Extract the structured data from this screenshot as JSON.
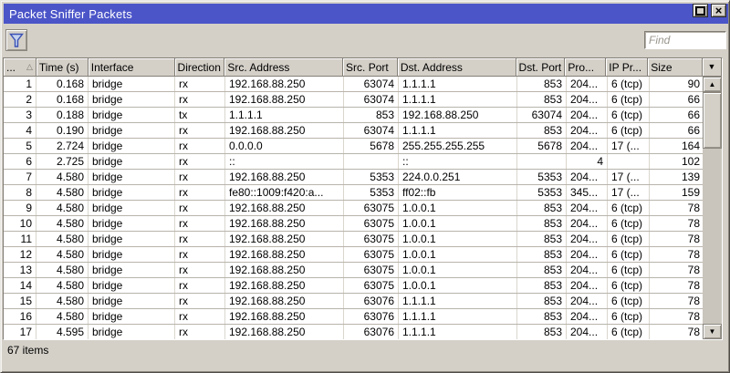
{
  "window": {
    "title": "Packet Sniffer Packets"
  },
  "titlebar": {
    "buttons": [
      "maximize",
      "close"
    ]
  },
  "toolbar": {
    "filter_button_icon": "filter-funnel-icon",
    "find_placeholder": "Find"
  },
  "colors": {
    "titlebar_bg": "#4b55c8",
    "window_face": "#d4d0c8",
    "funnel_stroke": "#3a50b4",
    "funnel_fill": "#c4d2ee"
  },
  "table": {
    "columns": [
      "...",
      "Time (s)",
      "Interface",
      "Direction",
      "Src. Address",
      "Src. Port",
      "Dst. Address",
      "Dst. Port",
      "Pro...",
      "IP Pr...",
      "Size"
    ],
    "sort_column": 0,
    "sort_indicator": "asc",
    "rows": [
      [
        "1",
        "0.168",
        "bridge",
        "rx",
        "192.168.88.250",
        "63074",
        "1.1.1.1",
        "853",
        "204...",
        "6 (tcp)",
        "90"
      ],
      [
        "2",
        "0.168",
        "bridge",
        "rx",
        "192.168.88.250",
        "63074",
        "1.1.1.1",
        "853",
        "204...",
        "6 (tcp)",
        "66"
      ],
      [
        "3",
        "0.188",
        "bridge",
        "tx",
        "1.1.1.1",
        "853",
        "192.168.88.250",
        "63074",
        "204...",
        "6 (tcp)",
        "66"
      ],
      [
        "4",
        "0.190",
        "bridge",
        "rx",
        "192.168.88.250",
        "63074",
        "1.1.1.1",
        "853",
        "204...",
        "6 (tcp)",
        "66"
      ],
      [
        "5",
        "2.724",
        "bridge",
        "rx",
        "0.0.0.0",
        "5678",
        "255.255.255.255",
        "5678",
        "204...",
        "17 (...",
        "164"
      ],
      [
        "6",
        "2.725",
        "bridge",
        "rx",
        "::",
        "",
        "::",
        "",
        "4",
        "",
        "102"
      ],
      [
        "7",
        "4.580",
        "bridge",
        "rx",
        "192.168.88.250",
        "5353",
        "224.0.0.251",
        "5353",
        "204...",
        "17 (...",
        "139"
      ],
      [
        "8",
        "4.580",
        "bridge",
        "rx",
        "fe80::1009:f420:a...",
        "5353",
        "ff02::fb",
        "5353",
        "345...",
        "17 (...",
        "159"
      ],
      [
        "9",
        "4.580",
        "bridge",
        "rx",
        "192.168.88.250",
        "63075",
        "1.0.0.1",
        "853",
        "204...",
        "6 (tcp)",
        "78"
      ],
      [
        "10",
        "4.580",
        "bridge",
        "rx",
        "192.168.88.250",
        "63075",
        "1.0.0.1",
        "853",
        "204...",
        "6 (tcp)",
        "78"
      ],
      [
        "11",
        "4.580",
        "bridge",
        "rx",
        "192.168.88.250",
        "63075",
        "1.0.0.1",
        "853",
        "204...",
        "6 (tcp)",
        "78"
      ],
      [
        "12",
        "4.580",
        "bridge",
        "rx",
        "192.168.88.250",
        "63075",
        "1.0.0.1",
        "853",
        "204...",
        "6 (tcp)",
        "78"
      ],
      [
        "13",
        "4.580",
        "bridge",
        "rx",
        "192.168.88.250",
        "63075",
        "1.0.0.1",
        "853",
        "204...",
        "6 (tcp)",
        "78"
      ],
      [
        "14",
        "4.580",
        "bridge",
        "rx",
        "192.168.88.250",
        "63075",
        "1.0.0.1",
        "853",
        "204...",
        "6 (tcp)",
        "78"
      ],
      [
        "15",
        "4.580",
        "bridge",
        "rx",
        "192.168.88.250",
        "63076",
        "1.1.1.1",
        "853",
        "204...",
        "6 (tcp)",
        "78"
      ],
      [
        "16",
        "4.580",
        "bridge",
        "rx",
        "192.168.88.250",
        "63076",
        "1.1.1.1",
        "853",
        "204...",
        "6 (tcp)",
        "78"
      ],
      [
        "17",
        "4.595",
        "bridge",
        "rx",
        "192.168.88.250",
        "63076",
        "1.1.1.1",
        "853",
        "204...",
        "6 (tcp)",
        "78"
      ]
    ]
  },
  "statusbar": {
    "items_count": "67 items"
  }
}
